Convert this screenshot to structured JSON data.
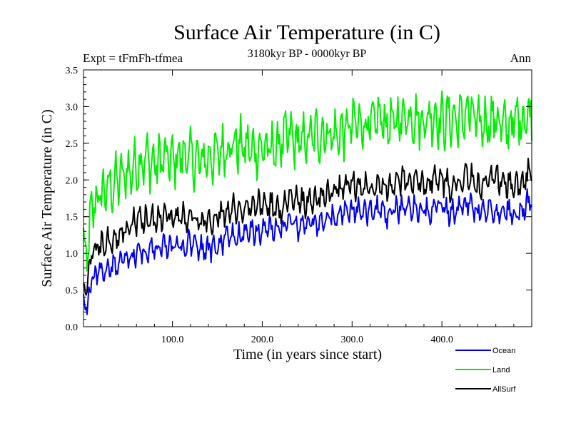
{
  "chart_data": {
    "type": "line",
    "title": "Surface Air Temperature (in C)",
    "subtitle_left": "Expt = tFmFh-tfmea",
    "subtitle_center": "3180kyr BP - 0000kyr BP",
    "subtitle_right": "Ann",
    "xlabel": "Time (in years since start)",
    "ylabel": "Surface Air Temperature (in C)",
    "xlim": [
      1,
      500
    ],
    "ylim": [
      0.0,
      3.5
    ],
    "xticks": [
      100,
      200,
      300,
      400
    ],
    "xtick_labels": [
      "100.0",
      "200.0",
      "300.0",
      "400.0"
    ],
    "yticks": [
      0.0,
      0.5,
      1.0,
      1.5,
      2.0,
      2.5,
      3.0,
      3.5
    ],
    "ytick_labels": [
      "0.0",
      "0.5",
      "1.0",
      "1.5",
      "2.0",
      "2.5",
      "3.0",
      "3.5"
    ],
    "grid": false,
    "legend_position": "bottom-right, below plot",
    "series": [
      {
        "name": "Ocean",
        "color": "#0000ee",
        "x": [
          1,
          5,
          10,
          20,
          30,
          40,
          50,
          60,
          70,
          80,
          90,
          100,
          110,
          120,
          130,
          140,
          150,
          160,
          170,
          180,
          190,
          200,
          210,
          220,
          230,
          240,
          250,
          260,
          270,
          280,
          290,
          300,
          310,
          320,
          330,
          340,
          350,
          360,
          370,
          380,
          390,
          400,
          410,
          420,
          430,
          440,
          450,
          460,
          470,
          480,
          490,
          500
        ],
        "values": [
          0.45,
          0.2,
          0.65,
          0.75,
          0.8,
          0.88,
          0.9,
          1.0,
          1.0,
          1.05,
          1.1,
          1.1,
          1.1,
          1.15,
          1.05,
          1.05,
          1.1,
          1.2,
          1.25,
          1.25,
          1.3,
          1.3,
          1.35,
          1.3,
          1.45,
          1.35,
          1.4,
          1.4,
          1.45,
          1.5,
          1.55,
          1.6,
          1.55,
          1.55,
          1.6,
          1.5,
          1.6,
          1.65,
          1.6,
          1.55,
          1.6,
          1.65,
          1.55,
          1.6,
          1.7,
          1.55,
          1.6,
          1.55,
          1.6,
          1.5,
          1.6,
          1.75
        ]
      },
      {
        "name": "Land",
        "color": "#00ee00",
        "x": [
          1,
          5,
          10,
          20,
          30,
          40,
          50,
          60,
          70,
          80,
          90,
          100,
          110,
          120,
          130,
          140,
          150,
          160,
          170,
          180,
          190,
          200,
          210,
          220,
          230,
          240,
          250,
          260,
          270,
          280,
          290,
          300,
          310,
          320,
          330,
          340,
          350,
          360,
          370,
          380,
          390,
          400,
          410,
          420,
          430,
          440,
          450,
          460,
          470,
          480,
          490,
          500
        ],
        "values": [
          1.1,
          0.9,
          1.6,
          1.8,
          1.9,
          2.0,
          2.1,
          2.2,
          2.3,
          2.2,
          2.3,
          2.25,
          2.35,
          2.3,
          2.25,
          2.3,
          2.35,
          2.45,
          2.5,
          2.45,
          2.4,
          2.45,
          2.4,
          2.5,
          2.6,
          2.5,
          2.55,
          2.6,
          2.65,
          2.6,
          2.65,
          2.75,
          2.8,
          2.7,
          2.85,
          2.75,
          2.8,
          2.9,
          2.85,
          2.8,
          2.9,
          2.8,
          2.85,
          2.8,
          2.95,
          2.75,
          2.8,
          2.85,
          2.7,
          2.8,
          2.85,
          2.9
        ]
      },
      {
        "name": "AllSurf",
        "color": "#000000",
        "x": [
          1,
          5,
          10,
          20,
          30,
          40,
          50,
          60,
          70,
          80,
          90,
          100,
          110,
          120,
          130,
          140,
          150,
          160,
          170,
          180,
          190,
          200,
          210,
          220,
          230,
          240,
          250,
          260,
          270,
          280,
          290,
          300,
          310,
          320,
          330,
          340,
          350,
          360,
          370,
          380,
          390,
          400,
          410,
          420,
          430,
          440,
          450,
          460,
          470,
          480,
          490,
          500
        ],
        "values": [
          0.6,
          0.45,
          1.0,
          1.1,
          1.15,
          1.2,
          1.35,
          1.45,
          1.45,
          1.45,
          1.5,
          1.5,
          1.5,
          1.5,
          1.45,
          1.4,
          1.5,
          1.6,
          1.6,
          1.6,
          1.65,
          1.65,
          1.65,
          1.6,
          1.75,
          1.7,
          1.7,
          1.75,
          1.8,
          1.85,
          1.9,
          1.95,
          1.9,
          1.9,
          2.0,
          1.9,
          1.95,
          2.0,
          1.95,
          1.95,
          2.0,
          2.0,
          1.9,
          2.0,
          2.05,
          1.9,
          1.95,
          2.0,
          1.95,
          1.9,
          2.0,
          2.1
        ]
      }
    ]
  }
}
